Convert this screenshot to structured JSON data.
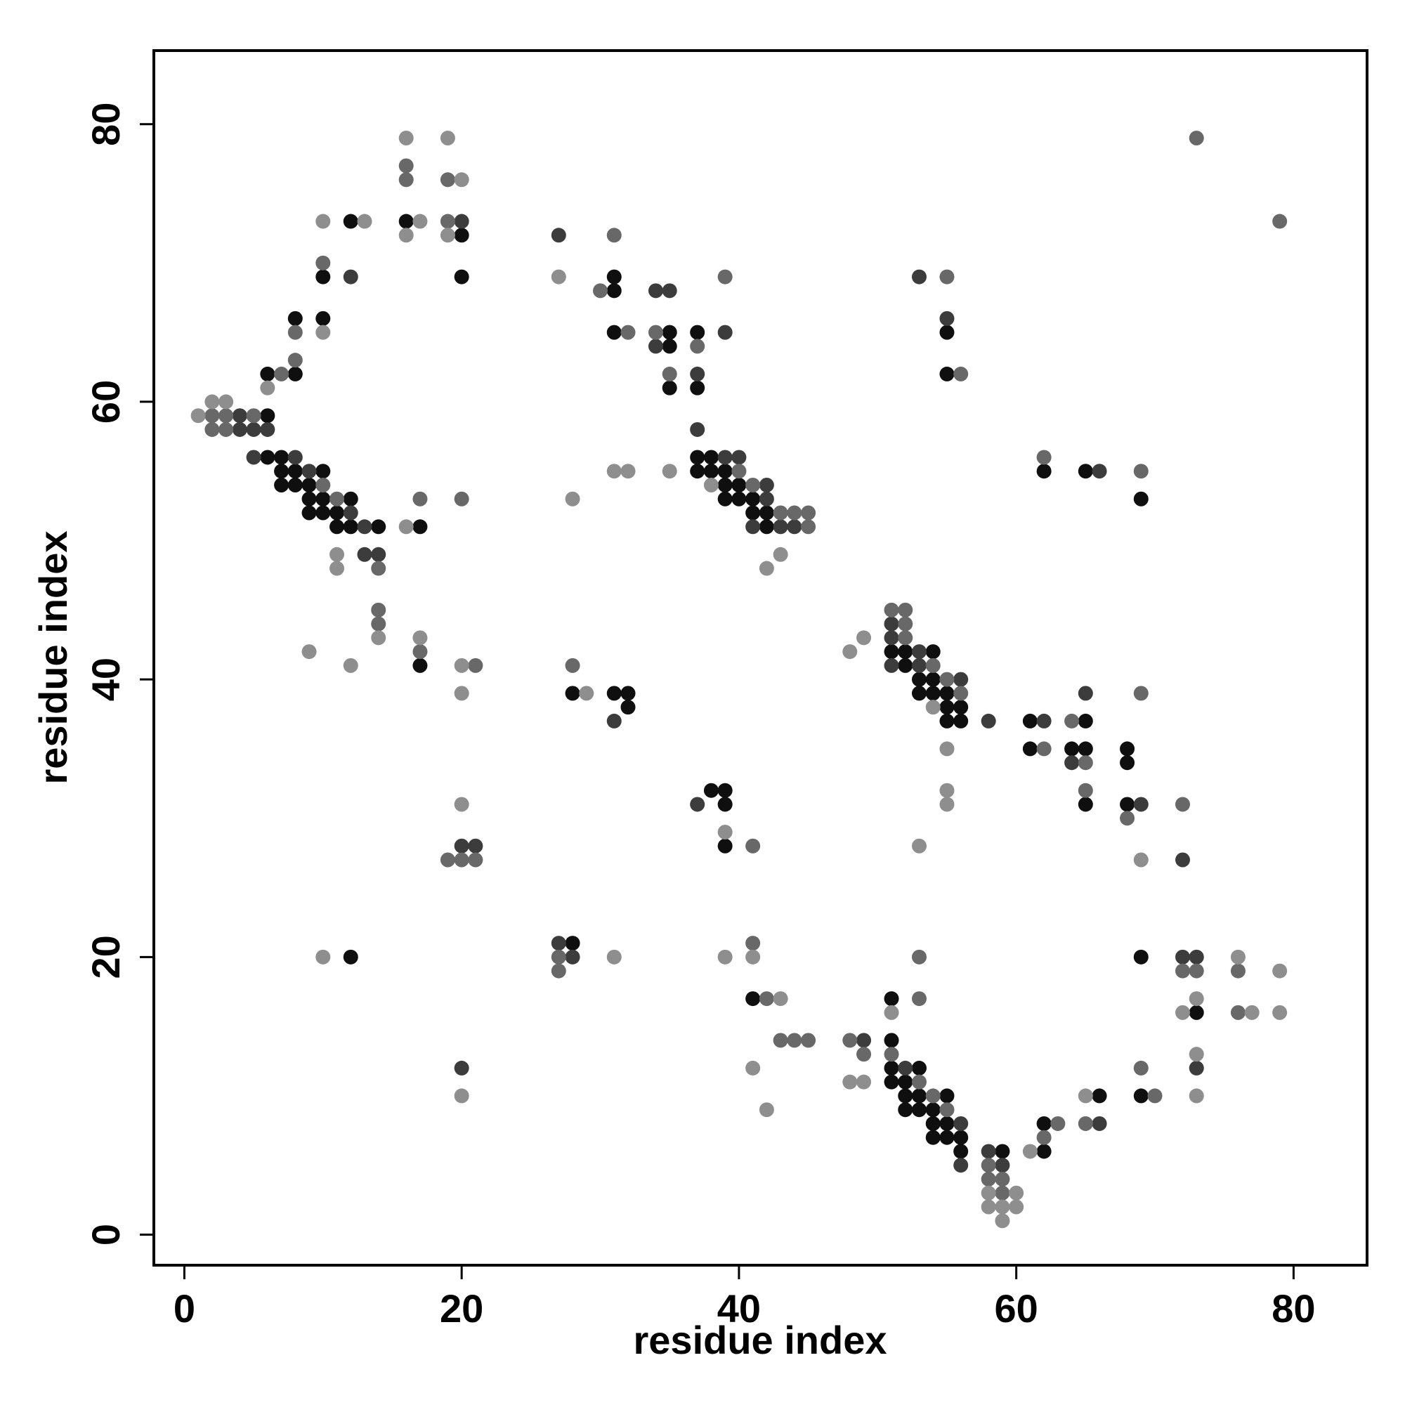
{
  "chart_data": {
    "type": "scatter",
    "xlabel": "residue index",
    "ylabel": "residue index",
    "xlim": [
      -2.2,
      85.3
    ],
    "ylim": [
      -2.2,
      85.3
    ],
    "xticks": [
      0,
      20,
      40,
      60,
      80
    ],
    "yticks": [
      0,
      20,
      40,
      60,
      80
    ],
    "series": [
      {
        "color": "#0f0f0f",
        "x": [
          12,
          16,
          20,
          10,
          20,
          31,
          31,
          8,
          10,
          31,
          35,
          37,
          55,
          35,
          6,
          8,
          55,
          35,
          37,
          6,
          6,
          7,
          37,
          38,
          7,
          8,
          10,
          37,
          38,
          39,
          62,
          65,
          7,
          8,
          9,
          39,
          40,
          9,
          10,
          12,
          39,
          40,
          41,
          69,
          9,
          10,
          11,
          41,
          42,
          11,
          12,
          14,
          17,
          42,
          51,
          52,
          54,
          17,
          52,
          53,
          54,
          28,
          31,
          32,
          53,
          54,
          55,
          32,
          55,
          56,
          55,
          56,
          61,
          65,
          61,
          64,
          65,
          68,
          68,
          38,
          39,
          39,
          65,
          68,
          39,
          28,
          12,
          69,
          41,
          51,
          73,
          51,
          51,
          53,
          51,
          52,
          52,
          53,
          55,
          66,
          69,
          52,
          53,
          54,
          54,
          55,
          62,
          54,
          55,
          56,
          56,
          59,
          62
        ],
        "values": [
          73,
          73,
          72,
          69,
          69,
          69,
          68,
          66,
          66,
          65,
          65,
          65,
          65,
          64,
          62,
          62,
          62,
          61,
          61,
          59,
          56,
          56,
          56,
          56,
          55,
          55,
          55,
          55,
          55,
          55,
          55,
          55,
          54,
          54,
          54,
          54,
          54,
          53,
          53,
          53,
          53,
          53,
          53,
          53,
          52,
          52,
          52,
          52,
          52,
          51,
          51,
          51,
          51,
          51,
          42,
          42,
          42,
          41,
          41,
          40,
          40,
          39,
          39,
          39,
          39,
          39,
          39,
          38,
          38,
          38,
          37,
          37,
          37,
          37,
          35,
          35,
          35,
          35,
          34,
          32,
          32,
          31,
          31,
          31,
          28,
          21,
          20,
          20,
          17,
          17,
          16,
          14,
          12,
          12,
          11,
          11,
          10,
          10,
          10,
          10,
          10,
          9,
          9,
          9,
          8,
          8,
          8,
          7,
          7,
          7,
          6,
          6,
          6
        ]
      },
      {
        "color": "#3c3c3c",
        "x": [
          20,
          27,
          12,
          53,
          34,
          35,
          55,
          39,
          34,
          37,
          4,
          4,
          5,
          6,
          37,
          5,
          8,
          39,
          40,
          9,
          66,
          42,
          42,
          12,
          13,
          41,
          43,
          44,
          13,
          14,
          51,
          51,
          53,
          51,
          53,
          56,
          65,
          31,
          58,
          62,
          64,
          37,
          69,
          20,
          21,
          72,
          27,
          28,
          72,
          73,
          49,
          20,
          52,
          73,
          56,
          66,
          58,
          56,
          59
        ],
        "values": [
          73,
          72,
          69,
          69,
          68,
          68,
          66,
          65,
          64,
          62,
          59,
          58,
          58,
          58,
          58,
          56,
          56,
          56,
          56,
          55,
          55,
          54,
          53,
          52,
          51,
          51,
          51,
          51,
          49,
          49,
          44,
          43,
          42,
          41,
          41,
          40,
          39,
          37,
          37,
          37,
          34,
          31,
          31,
          28,
          28,
          27,
          21,
          20,
          20,
          20,
          14,
          12,
          12,
          12,
          8,
          8,
          6,
          5,
          5
        ]
      },
      {
        "color": "#686868",
        "x": [
          73,
          16,
          16,
          19,
          19,
          79,
          31,
          10,
          39,
          55,
          30,
          8,
          32,
          34,
          37,
          8,
          7,
          35,
          56,
          2,
          3,
          5,
          2,
          3,
          62,
          40,
          69,
          10,
          41,
          11,
          17,
          20,
          43,
          44,
          45,
          45,
          14,
          14,
          51,
          52,
          14,
          52,
          52,
          17,
          21,
          28,
          54,
          55,
          56,
          69,
          64,
          62,
          65,
          65,
          72,
          68,
          41,
          19,
          20,
          21,
          41,
          27,
          53,
          27,
          72,
          73,
          76,
          42,
          53,
          76,
          43,
          44,
          45,
          48,
          49,
          51,
          69,
          53,
          54,
          70,
          55,
          63,
          65,
          62,
          58,
          58,
          59,
          59
        ],
        "values": [
          79,
          77,
          76,
          76,
          73,
          73,
          72,
          70,
          69,
          69,
          68,
          65,
          65,
          65,
          64,
          63,
          62,
          62,
          62,
          59,
          59,
          59,
          58,
          58,
          56,
          55,
          55,
          54,
          54,
          53,
          53,
          53,
          52,
          52,
          52,
          51,
          48,
          45,
          45,
          45,
          44,
          44,
          43,
          42,
          41,
          41,
          41,
          40,
          39,
          39,
          37,
          35,
          34,
          32,
          31,
          30,
          28,
          27,
          27,
          27,
          21,
          20,
          20,
          19,
          19,
          19,
          19,
          17,
          17,
          16,
          14,
          14,
          14,
          14,
          13,
          13,
          12,
          11,
          10,
          10,
          9,
          8,
          8,
          7,
          5,
          4,
          4,
          3
        ]
      },
      {
        "color": "#8e8e8e",
        "x": [
          16,
          19,
          20,
          10,
          13,
          17,
          16,
          19,
          27,
          10,
          6,
          2,
          3,
          1,
          31,
          32,
          35,
          38,
          28,
          16,
          11,
          43,
          11,
          42,
          14,
          17,
          49,
          9,
          48,
          12,
          20,
          20,
          29,
          54,
          55,
          55,
          20,
          55,
          39,
          53,
          69,
          10,
          31,
          39,
          41,
          76,
          79,
          43,
          73,
          51,
          72,
          77,
          79,
          73,
          41,
          48,
          49,
          20,
          65,
          73,
          42,
          61,
          58,
          60,
          58,
          59,
          60,
          59
        ],
        "values": [
          79,
          79,
          76,
          73,
          73,
          73,
          72,
          72,
          69,
          65,
          61,
          60,
          60,
          59,
          55,
          55,
          55,
          54,
          53,
          51,
          49,
          49,
          48,
          48,
          43,
          43,
          43,
          42,
          42,
          41,
          41,
          39,
          39,
          38,
          35,
          32,
          31,
          31,
          29,
          28,
          27,
          20,
          20,
          20,
          20,
          20,
          19,
          17,
          17,
          16,
          16,
          16,
          16,
          13,
          12,
          11,
          11,
          10,
          10,
          10,
          9,
          6,
          3,
          3,
          2,
          2,
          2,
          1
        ]
      }
    ]
  }
}
